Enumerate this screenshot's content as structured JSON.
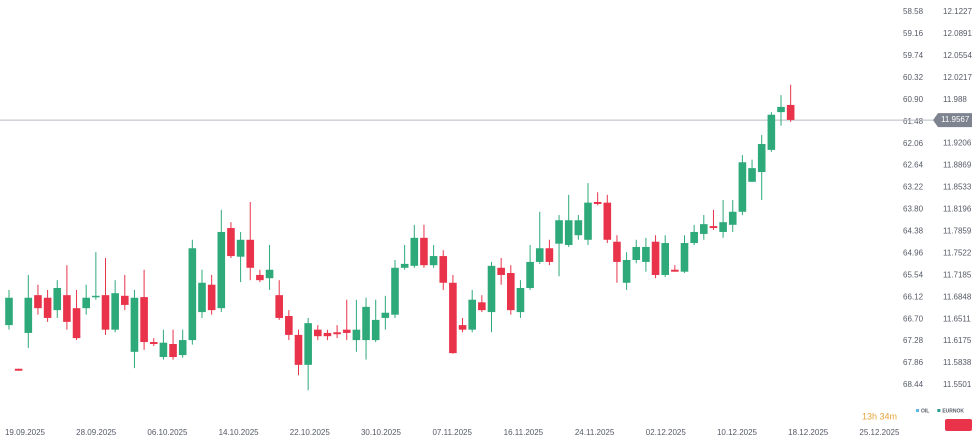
{
  "chart_data": {
    "type": "candlestick",
    "up_color": "#2ea97a",
    "down_color": "#e8334a",
    "ylim": [
      11.4994,
      12.1411
    ],
    "yticks": [
      12.1227,
      12.0891,
      12.0554,
      12.0217,
      11.988,
      11.9206,
      11.8869,
      11.8533,
      11.8196,
      11.7859,
      11.7522,
      11.7185,
      11.6848,
      11.6511,
      11.6175,
      11.5838,
      11.5501
    ],
    "y2lim": [
      69.312,
      58.263
    ],
    "y2ticks": [
      58.58,
      59.16,
      59.74,
      60.32,
      {
        "value": 60.9,
        "label": "60.90"
      },
      61.48,
      62.06,
      62.64,
      63.22,
      {
        "value": 63.8,
        "label": "63.80"
      },
      64.38,
      64.96,
      65.54,
      66.12,
      {
        "value": 66.7,
        "label": "66.70"
      },
      67.28,
      67.86,
      68.44
    ],
    "last_price": 11.9567,
    "last_price_color": "#7d838f",
    "xtick_labels": [
      "19.09.2025",
      "28.09.2025",
      "06.10.2025",
      "14.10.2025",
      "22.10.2025",
      "30.10.2025",
      "07.11.2025",
      "16.11.2025",
      "24.11.2025",
      "02.12.2025",
      "10.12.2025",
      "18.12.2025",
      "25.12.2025"
    ],
    "legend": [
      {
        "name": "OIL",
        "color": "#5bb8e8"
      },
      {
        "name": "EURNOK",
        "color": "#2a9d8f"
      }
    ],
    "timer": "13h 34m",
    "ohlc": [
      [
        11.642,
        11.696,
        11.635,
        11.684
      ],
      [
        11.575,
        11.575,
        11.572,
        11.572
      ],
      [
        11.63,
        11.719,
        11.607,
        11.684
      ],
      [
        11.688,
        11.704,
        11.658,
        11.668
      ],
      [
        11.684,
        11.696,
        11.647,
        11.653
      ],
      [
        11.665,
        11.711,
        11.653,
        11.699
      ],
      [
        11.688,
        11.734,
        11.635,
        11.647
      ],
      [
        11.668,
        11.696,
        11.619,
        11.622
      ],
      [
        11.668,
        11.704,
        11.658,
        11.684
      ],
      [
        11.685,
        11.754,
        11.681,
        11.687
      ],
      [
        11.688,
        11.745,
        11.627,
        11.635
      ],
      [
        11.635,
        11.711,
        11.631,
        11.691
      ],
      [
        11.687,
        11.719,
        11.665,
        11.673
      ],
      [
        11.601,
        11.696,
        11.576,
        11.684
      ],
      [
        11.685,
        11.727,
        11.604,
        11.616
      ],
      [
        11.616,
        11.622,
        11.61,
        11.613
      ],
      [
        11.593,
        11.635,
        11.589,
        11.615
      ],
      [
        11.613,
        11.635,
        11.589,
        11.593
      ],
      [
        11.596,
        11.635,
        11.592,
        11.619
      ],
      [
        11.619,
        11.773,
        11.612,
        11.76
      ],
      [
        11.662,
        11.727,
        11.653,
        11.707
      ],
      [
        11.704,
        11.719,
        11.658,
        11.665
      ],
      [
        11.668,
        11.819,
        11.662,
        11.785
      ],
      [
        11.791,
        11.8,
        11.745,
        11.748
      ],
      [
        11.747,
        11.785,
        11.708,
        11.773
      ],
      [
        11.773,
        11.831,
        11.711,
        11.73
      ],
      [
        11.719,
        11.727,
        11.708,
        11.711
      ],
      [
        11.714,
        11.765,
        11.696,
        11.727
      ],
      [
        11.688,
        11.711,
        11.65,
        11.653
      ],
      [
        11.656,
        11.665,
        11.619,
        11.627
      ],
      [
        11.627,
        11.635,
        11.565,
        11.581
      ],
      [
        11.581,
        11.653,
        11.542,
        11.645
      ],
      [
        11.635,
        11.642,
        11.619,
        11.625
      ],
      [
        11.63,
        11.635,
        11.619,
        11.625
      ],
      [
        11.631,
        11.642,
        11.622,
        11.628
      ],
      [
        11.635,
        11.681,
        11.619,
        11.63
      ],
      [
        11.619,
        11.681,
        11.601,
        11.635
      ],
      [
        11.619,
        11.684,
        11.589,
        11.67
      ],
      [
        11.619,
        11.681,
        11.616,
        11.65
      ],
      [
        11.653,
        11.687,
        11.635,
        11.661
      ],
      [
        11.658,
        11.742,
        11.653,
        11.73
      ],
      [
        11.73,
        11.765,
        11.727,
        11.736
      ],
      [
        11.733,
        11.796,
        11.73,
        11.776
      ],
      [
        11.776,
        11.796,
        11.73,
        11.734
      ],
      [
        11.734,
        11.765,
        11.73,
        11.748
      ],
      [
        11.748,
        11.757,
        11.696,
        11.707
      ],
      [
        11.707,
        11.719,
        11.598,
        11.599
      ],
      [
        11.642,
        11.653,
        11.631,
        11.635
      ],
      [
        11.635,
        11.696,
        11.631,
        11.681
      ],
      [
        11.677,
        11.688,
        11.662,
        11.665
      ],
      [
        11.662,
        11.739,
        11.631,
        11.733
      ],
      [
        11.73,
        11.745,
        11.704,
        11.719
      ],
      [
        11.722,
        11.734,
        11.658,
        11.665
      ],
      [
        11.662,
        11.711,
        11.653,
        11.699
      ],
      [
        11.699,
        11.765,
        11.696,
        11.739
      ],
      [
        11.739,
        11.816,
        11.736,
        11.76
      ],
      [
        11.76,
        11.773,
        11.734,
        11.739
      ],
      [
        11.767,
        11.811,
        11.717,
        11.803
      ],
      [
        11.765,
        11.842,
        11.762,
        11.803
      ],
      [
        11.78,
        11.811,
        11.773,
        11.803
      ],
      [
        11.773,
        11.86,
        11.765,
        11.83
      ],
      [
        11.831,
        11.846,
        11.826,
        11.828
      ],
      [
        11.83,
        11.842,
        11.768,
        11.773
      ],
      [
        11.77,
        11.78,
        11.707,
        11.739
      ],
      [
        11.707,
        11.754,
        11.696,
        11.742
      ],
      [
        11.742,
        11.773,
        11.737,
        11.762
      ],
      [
        11.739,
        11.776,
        11.724,
        11.762
      ],
      [
        11.77,
        11.78,
        11.714,
        11.719
      ],
      [
        11.719,
        11.78,
        11.716,
        11.768
      ],
      [
        11.727,
        11.734,
        11.724,
        11.724
      ],
      [
        11.724,
        11.78,
        11.722,
        11.768
      ],
      [
        11.768,
        11.796,
        11.765,
        11.785
      ],
      [
        11.782,
        11.811,
        11.773,
        11.797
      ],
      [
        11.794,
        11.819,
        11.788,
        11.791
      ],
      [
        11.785,
        11.834,
        11.776,
        11.8
      ],
      [
        11.796,
        11.834,
        11.785,
        11.816
      ],
      [
        11.816,
        11.903,
        11.811,
        11.892
      ],
      [
        11.862,
        11.896,
        11.862,
        11.883
      ],
      [
        11.877,
        11.934,
        11.834,
        11.92
      ],
      [
        11.911,
        11.969,
        11.908,
        11.965
      ],
      [
        11.969,
        11.995,
        11.948,
        11.977
      ],
      [
        11.98,
        12.011,
        11.954,
        11.957
      ]
    ]
  }
}
